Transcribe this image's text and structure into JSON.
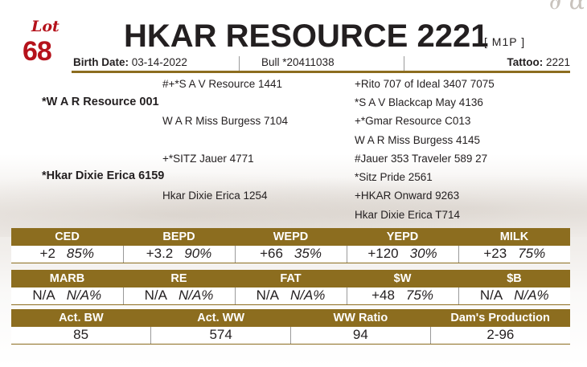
{
  "header": {
    "lot_label": "Lot",
    "lot_number": "68",
    "title": "HKAR RESOURCE 2221",
    "registration_tag": "[ M1P ]"
  },
  "info": {
    "birth_date_label": "Birth Date:",
    "birth_date": "03-14-2022",
    "bull_id": "Bull *20411038",
    "tattoo_label": "Tattoo:",
    "tattoo": "2221"
  },
  "pedigree": {
    "sire_sire": "#+*S A V Resource 1441",
    "sire": "*W A R Resource 001",
    "sire_dam": "W A R Miss Burgess 7104",
    "dam_sire": "+*SITZ Jauer 4771",
    "dam": "*Hkar Dixie Erica 6159",
    "dam_dam": "Hkar Dixie Erica 1254",
    "g1": "+Rito 707 of Ideal 3407 7075",
    "g2": "*S A V Blackcap May 4136",
    "g3": "+*Gmar Resource C013",
    "g4": "W A R Miss Burgess 4145",
    "g5": "#Jauer 353 Traveler 589 27",
    "g6": "*Sitz Pride 2561",
    "g7": "+HKAR Onward 9263",
    "g8": "Hkar Dixie Erica T714"
  },
  "epd_table_1": {
    "headers": [
      "CED",
      "BEPD",
      "WEPD",
      "YEPD",
      "MILK"
    ],
    "values": [
      "+2",
      "+3.2",
      "+66",
      "+120",
      "+23"
    ],
    "percents": [
      "85%",
      "90%",
      "35%",
      "30%",
      "75%"
    ]
  },
  "epd_table_2": {
    "headers": [
      "MARB",
      "RE",
      "FAT",
      "$W",
      "$B"
    ],
    "values": [
      "N/A",
      "N/A",
      "N/A",
      "+48",
      "N/A"
    ],
    "percents": [
      "N/A%",
      "N/A%",
      "N/A%",
      "75%",
      "N/A%"
    ]
  },
  "actuals_table": {
    "headers": [
      "Act. BW",
      "Act. WW",
      "WW Ratio",
      "Dam's Production"
    ],
    "values": [
      "85",
      "574",
      "94",
      "2-96"
    ]
  },
  "colors": {
    "accent_gold": "#8c6d1f",
    "lot_red": "#b5121b",
    "text": "#231f20"
  }
}
